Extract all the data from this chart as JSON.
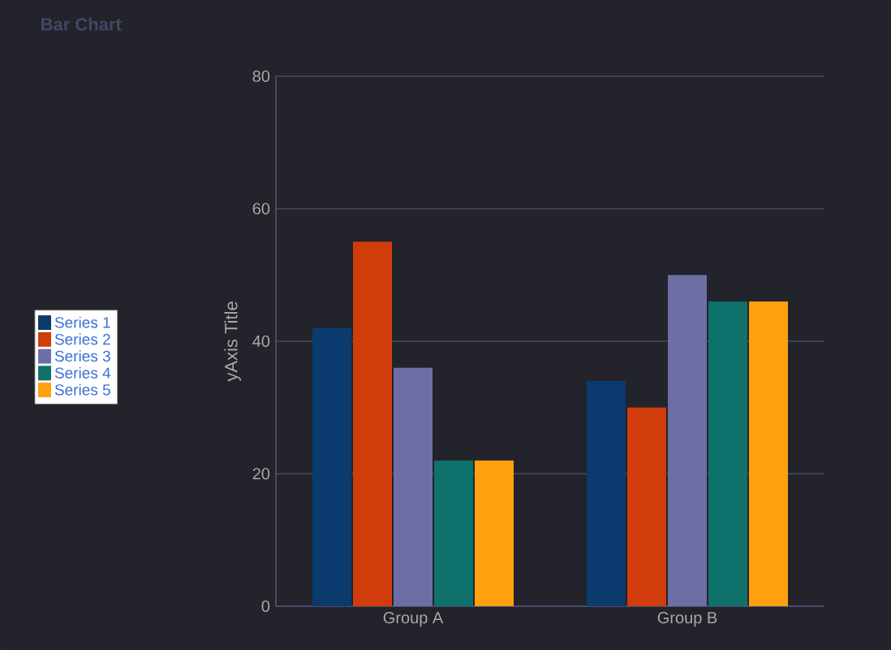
{
  "chart_data": {
    "type": "bar",
    "title": "Bar Chart",
    "ylabel": "yAxis Title",
    "categories": [
      "Group A",
      "Group B"
    ],
    "series": [
      {
        "name": "Series 1",
        "color": "#0b3a6e",
        "values": [
          42,
          34
        ]
      },
      {
        "name": "Series 2",
        "color": "#d03d0a",
        "values": [
          55,
          30
        ]
      },
      {
        "name": "Series 3",
        "color": "#6e6ea6",
        "values": [
          36,
          50
        ]
      },
      {
        "name": "Series 4",
        "color": "#0f716b",
        "values": [
          22,
          46
        ]
      },
      {
        "name": "Series 5",
        "color": "#ffa10f",
        "values": [
          22,
          46
        ]
      }
    ],
    "ylim": [
      0,
      80
    ],
    "yticks": [
      0,
      20,
      40,
      60,
      80
    ],
    "grid": "y",
    "legend": "left"
  }
}
